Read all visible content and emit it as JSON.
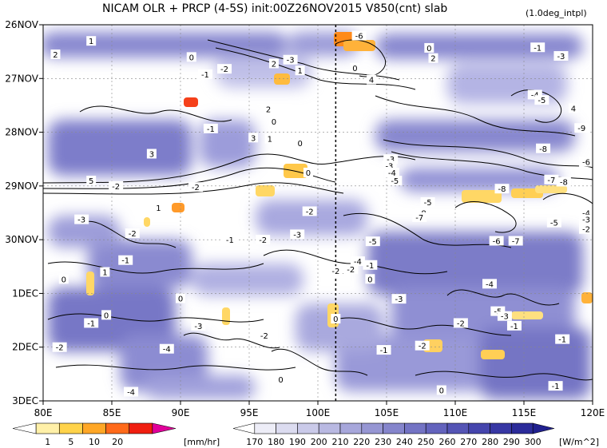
{
  "header": {
    "title": "NICAM  OLR + PRCP (4-5S) init:00Z26NOV2015 V850(cnt) slab",
    "resolution_note": "(1.0deg_intpl)"
  },
  "chart_data": {
    "type": "heatmap",
    "title": "NICAM  OLR + PRCP (4-5S) init:00Z26NOV2015 V850(cnt) slab",
    "x_axis": {
      "ticks": [
        "80E",
        "85E",
        "90E",
        "95E",
        "100E",
        "105E",
        "110E",
        "115E",
        "120E"
      ],
      "range_deg": [
        80,
        120
      ]
    },
    "y_axis": {
      "ticks": [
        "26NOV",
        "27NOV",
        "28NOV",
        "29NOV",
        "30NOV",
        "1DEC",
        "2DEC",
        "3DEC"
      ],
      "range": [
        "2015-11-26",
        "2015-12-03"
      ]
    },
    "grid": true,
    "reference_line_lon": 101.3,
    "contour_labels": [
      {
        "text": "1",
        "lon": 83.5,
        "day": 0.3
      },
      {
        "text": "2",
        "lon": 80.9,
        "day": 0.55
      },
      {
        "text": "0",
        "lon": 90.8,
        "day": 0.6
      },
      {
        "text": "-2",
        "lon": 93.2,
        "day": 0.82
      },
      {
        "text": "-1",
        "lon": 91.8,
        "day": 0.92
      },
      {
        "text": "2",
        "lon": 96.8,
        "day": 0.72
      },
      {
        "text": "-3",
        "lon": 98.0,
        "day": 0.65
      },
      {
        "text": "1",
        "lon": 98.7,
        "day": 0.85
      },
      {
        "text": "-6",
        "lon": 103.0,
        "day": 0.2
      },
      {
        "text": "0",
        "lon": 102.7,
        "day": 0.8
      },
      {
        "text": "4",
        "lon": 103.9,
        "day": 1.02
      },
      {
        "text": "0",
        "lon": 108.1,
        "day": 0.43
      },
      {
        "text": "2",
        "lon": 108.4,
        "day": 0.62
      },
      {
        "text": "-1",
        "lon": 116.0,
        "day": 0.42
      },
      {
        "text": "-3",
        "lon": 117.7,
        "day": 0.58
      },
      {
        "text": "-4",
        "lon": 115.8,
        "day": 1.3
      },
      {
        "text": "-5",
        "lon": 116.3,
        "day": 1.4
      },
      {
        "text": "4",
        "lon": 118.6,
        "day": 1.55
      },
      {
        "text": "-9",
        "lon": 119.2,
        "day": 1.92
      },
      {
        "text": "-1",
        "lon": 92.2,
        "day": 1.93
      },
      {
        "text": "0",
        "lon": 96.8,
        "day": 1.8
      },
      {
        "text": "2",
        "lon": 96.4,
        "day": 1.57
      },
      {
        "text": "1",
        "lon": 96.5,
        "day": 2.12
      },
      {
        "text": "3",
        "lon": 95.3,
        "day": 2.1
      },
      {
        "text": "0",
        "lon": 98.7,
        "day": 2.2
      },
      {
        "text": "3",
        "lon": 87.9,
        "day": 2.4
      },
      {
        "text": "-8",
        "lon": 116.4,
        "day": 2.3
      },
      {
        "text": "-6",
        "lon": 120.2,
        "day": 2.55
      },
      {
        "text": "-3",
        "lon": 105.3,
        "day": 2.5
      },
      {
        "text": "-3",
        "lon": 105.2,
        "day": 2.62
      },
      {
        "text": "-4",
        "lon": 105.4,
        "day": 2.75
      },
      {
        "text": "-5",
        "lon": 105.6,
        "day": 2.9
      },
      {
        "text": "5",
        "lon": 83.5,
        "day": 2.9
      },
      {
        "text": "-2",
        "lon": 85.3,
        "day": 3.0
      },
      {
        "text": "-2",
        "lon": 91.1,
        "day": 3.02
      },
      {
        "text": "0",
        "lon": 99.3,
        "day": 2.75
      },
      {
        "text": "-7",
        "lon": 117.0,
        "day": 2.88
      },
      {
        "text": "-8",
        "lon": 117.9,
        "day": 2.92
      },
      {
        "text": "-8",
        "lon": 113.4,
        "day": 3.05
      },
      {
        "text": "-5",
        "lon": 108.0,
        "day": 3.3
      },
      {
        "text": "-8",
        "lon": 107.6,
        "day": 3.5
      },
      {
        "text": "-7",
        "lon": 107.4,
        "day": 3.58
      },
      {
        "text": "-4",
        "lon": 120.5,
        "day": 3.5
      },
      {
        "text": "-3",
        "lon": 120.5,
        "day": 3.62
      },
      {
        "text": "-2",
        "lon": 120.5,
        "day": 3.8
      },
      {
        "text": "-5",
        "lon": 117.2,
        "day": 3.68
      },
      {
        "text": "-3",
        "lon": 82.8,
        "day": 3.62
      },
      {
        "text": "-2",
        "lon": 86.5,
        "day": 3.88
      },
      {
        "text": "1",
        "lon": 88.4,
        "day": 3.4
      },
      {
        "text": "-2",
        "lon": 99.4,
        "day": 3.47
      },
      {
        "text": "-3",
        "lon": 98.5,
        "day": 3.9
      },
      {
        "text": "-1",
        "lon": 93.6,
        "day": 4.0
      },
      {
        "text": "-2",
        "lon": 96.0,
        "day": 4.0
      },
      {
        "text": "-5",
        "lon": 104.0,
        "day": 4.03
      },
      {
        "text": "-6",
        "lon": 113.0,
        "day": 4.02
      },
      {
        "text": "-7",
        "lon": 114.4,
        "day": 4.02
      },
      {
        "text": "-1",
        "lon": 86.0,
        "day": 4.38
      },
      {
        "text": "0",
        "lon": 81.5,
        "day": 4.73
      },
      {
        "text": "1",
        "lon": 84.5,
        "day": 4.6
      },
      {
        "text": "-4",
        "lon": 102.9,
        "day": 4.4
      },
      {
        "text": "-2",
        "lon": 102.4,
        "day": 4.55
      },
      {
        "text": "-3",
        "lon": 101.5,
        "day": 4.62
      },
      {
        "text": "-4",
        "lon": 101.6,
        "day": 4.6
      },
      {
        "text": "-1",
        "lon": 103.8,
        "day": 4.47
      },
      {
        "text": "-2",
        "lon": 101.3,
        "day": 4.58
      },
      {
        "text": "0",
        "lon": 103.8,
        "day": 4.73
      },
      {
        "text": "0",
        "lon": 90.0,
        "day": 5.09
      },
      {
        "text": "-4",
        "lon": 112.5,
        "day": 4.82
      },
      {
        "text": "-3",
        "lon": 105.9,
        "day": 5.1
      },
      {
        "text": "-1",
        "lon": 83.5,
        "day": 5.55
      },
      {
        "text": "0",
        "lon": 84.6,
        "day": 5.4
      },
      {
        "text": "-3",
        "lon": 91.3,
        "day": 5.6
      },
      {
        "text": "-5",
        "lon": 113.1,
        "day": 5.33
      },
      {
        "text": "-3",
        "lon": 113.6,
        "day": 5.42
      },
      {
        "text": "-2",
        "lon": 110.4,
        "day": 5.55
      },
      {
        "text": "-1",
        "lon": 114.3,
        "day": 5.6
      },
      {
        "text": "0",
        "lon": 101.3,
        "day": 5.47
      },
      {
        "text": "-2",
        "lon": 81.2,
        "day": 6.0
      },
      {
        "text": "-4",
        "lon": 89.0,
        "day": 6.03
      },
      {
        "text": "-2",
        "lon": 96.1,
        "day": 5.78
      },
      {
        "text": "-1",
        "lon": 104.8,
        "day": 6.05
      },
      {
        "text": "-2",
        "lon": 107.6,
        "day": 5.97
      },
      {
        "text": "-1",
        "lon": 117.8,
        "day": 5.85
      },
      {
        "text": "-4",
        "lon": 86.4,
        "day": 6.83
      },
      {
        "text": "0",
        "lon": 97.3,
        "day": 6.6
      },
      {
        "text": "0",
        "lon": 109.0,
        "day": 6.8
      },
      {
        "text": "-1",
        "lon": 117.3,
        "day": 6.72
      }
    ],
    "precip_legend": {
      "unit": "[mm/hr]",
      "ticks": [
        "1",
        "5",
        "10",
        "20"
      ],
      "colors": [
        "#ffffff",
        "#fff0a8",
        "#ffd34a",
        "#ffa726",
        "#ff6a1a",
        "#f01e10",
        "#e0009a"
      ]
    },
    "olr_legend": {
      "unit": "[W/m^2]",
      "ticks": [
        "170",
        "180",
        "190",
        "200",
        "210",
        "220",
        "230",
        "240",
        "250",
        "260",
        "270",
        "280",
        "290",
        "300"
      ],
      "colors": [
        "#ffffff",
        "#ededf7",
        "#dcdcf0",
        "#cacae9",
        "#b9b9e2",
        "#a7a7db",
        "#9696d3",
        "#8585cc",
        "#7373c4",
        "#6363bd",
        "#5454b5",
        "#4545ad",
        "#3737a4",
        "#2b2b9a",
        "#20208f"
      ]
    }
  }
}
